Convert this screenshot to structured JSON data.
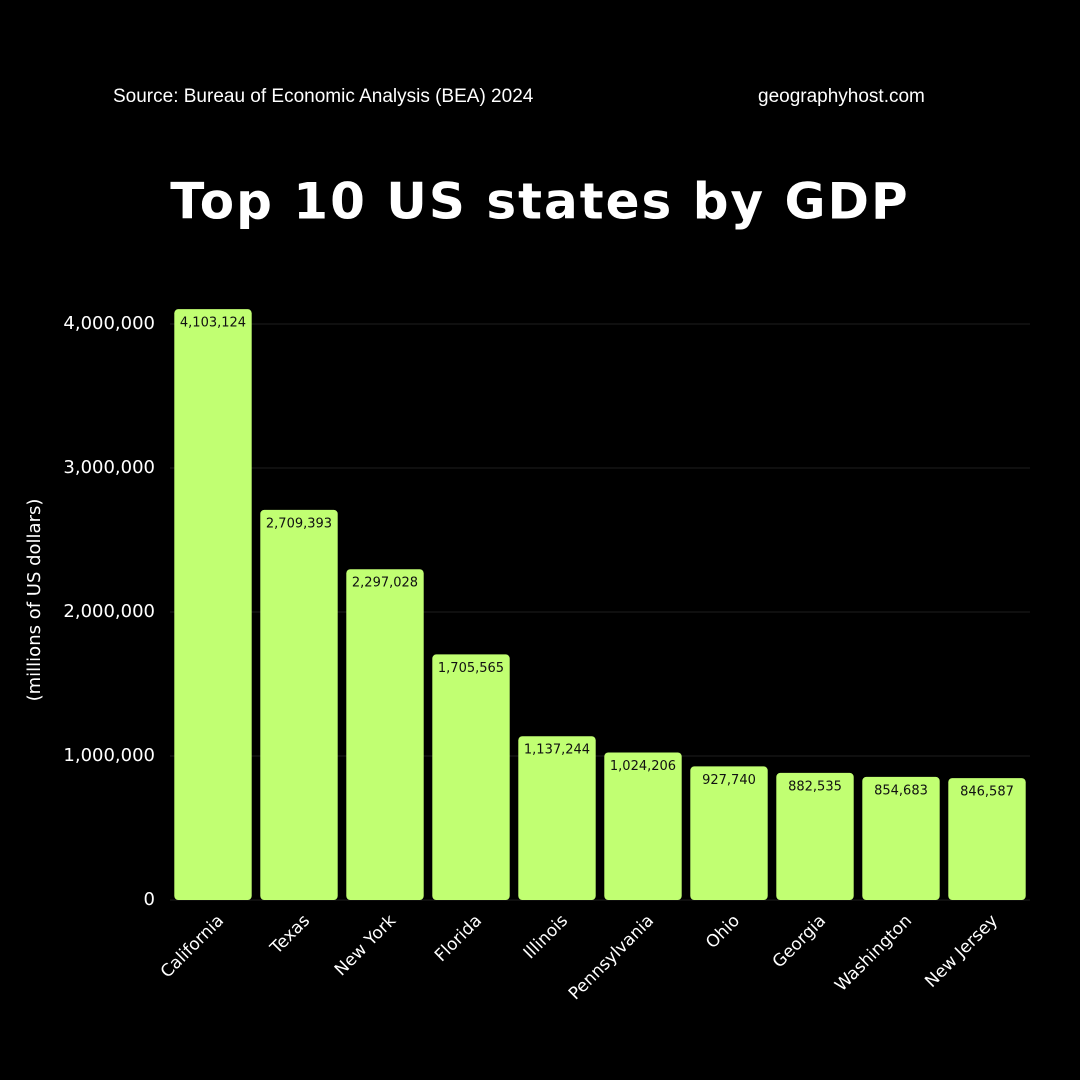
{
  "chart_data": {
    "type": "bar",
    "source": "Source: Bureau of Economic Analysis (BEA) 2024",
    "website": "geographyhost.com",
    "title": "Top 10 US states by GDP",
    "y_label": "(millions of US dollars)",
    "categories": [
      "California",
      "Texas",
      "New York",
      "Florida",
      "Illinois",
      "Pennsylvania",
      "Ohio",
      "Georgia",
      "Washington",
      "New Jersey"
    ],
    "values": [
      4103124,
      2709393,
      2297028,
      1705565,
      1137244,
      1024206,
      927740,
      882535,
      854683,
      846587
    ],
    "value_labels": [
      "4,103,124",
      "2,709,393",
      "2,297,028",
      "1,705,565",
      "1,137,244",
      "1,024,206",
      "927,740",
      "882,535",
      "854,683",
      "846,587"
    ],
    "color": "#c1ff72",
    "ylim": [
      0,
      4000000
    ],
    "yticks": [
      0,
      {
        "value": 1000000,
        "label": "1,000,000"
      },
      {
        "value": 2000000,
        "label": "2,000,000"
      },
      {
        "value": 3000000,
        "label": "3,000,000"
      },
      {
        "value": 4000000,
        "label": "4,000,000"
      }
    ],
    "grid": true
  }
}
